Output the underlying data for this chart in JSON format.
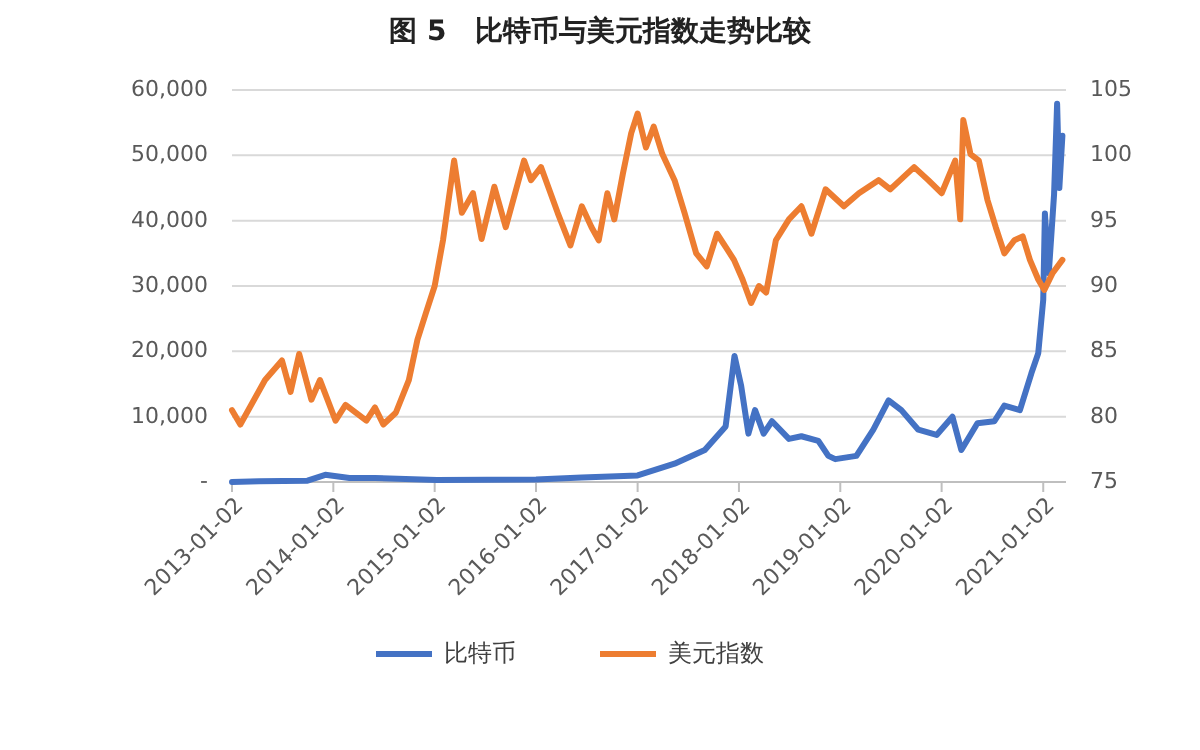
{
  "chart_data": {
    "type": "line",
    "title": "图 5　比特币与美元指数走势比较",
    "xlim": [
      "2013-01-02",
      "2021-03-25"
    ],
    "xticks": [
      "2013-01-02",
      "2014-01-02",
      "2015-01-02",
      "2016-01-02",
      "2017-01-02",
      "2018-01-02",
      "2019-01-02",
      "2020-01-02",
      "2021-01-02"
    ],
    "ylim": [
      0,
      60000
    ],
    "yticks": [
      {
        "value": 0,
        "label": "-"
      },
      {
        "value": 10000,
        "label": "10,000"
      },
      {
        "value": 20000,
        "label": "20,000"
      },
      {
        "value": 30000,
        "label": "30,000"
      },
      {
        "value": 40000,
        "label": "40,000"
      },
      {
        "value": 50000,
        "label": "50,000"
      },
      {
        "value": 60000,
        "label": "60,000"
      }
    ],
    "y2lim": [
      75,
      105
    ],
    "y2ticks": [
      75,
      80,
      85,
      90,
      95,
      100,
      105
    ],
    "grid": "y",
    "legend": "bottom",
    "line_style": "solid",
    "series": [
      {
        "name": "比特币",
        "color": "#4472c4",
        "x": [
          "2013-01-02",
          "2013-04-10",
          "2013-10-01",
          "2013-12-04",
          "2014-03-01",
          "2014-06-01",
          "2015-01-10",
          "2016-01-02",
          "2016-06-15",
          "2017-01-02",
          "2017-05-15",
          "2017-09-01",
          "2017-11-15",
          "2017-12-17",
          "2018-01-10",
          "2018-02-05",
          "2018-03-01",
          "2018-04-01",
          "2018-05-01",
          "2018-07-01",
          "2018-08-15",
          "2018-10-15",
          "2018-11-20",
          "2018-12-15",
          "2019-03-01",
          "2019-05-01",
          "2019-06-25",
          "2019-08-10",
          "2019-10-10",
          "2019-12-15",
          "2020-02-10",
          "2020-03-13",
          "2020-05-10",
          "2020-07-10",
          "2020-08-15",
          "2020-10-10",
          "2020-11-20",
          "2020-12-15",
          "2021-01-02",
          "2021-01-08",
          "2021-01-22",
          "2021-02-10",
          "2021-02-21",
          "2021-03-01",
          "2021-03-12"
        ],
        "values": [
          0,
          100,
          200,
          1100,
          600,
          600,
          300,
          400,
          700,
          1000,
          2800,
          4900,
          8500,
          19300,
          14700,
          7400,
          11000,
          7400,
          9300,
          6600,
          7000,
          6300,
          4000,
          3500,
          4000,
          8000,
          12500,
          11000,
          8000,
          7200,
          10000,
          4900,
          9000,
          9300,
          11700,
          11000,
          16600,
          19700,
          27900,
          41100,
          32000,
          44000,
          57900,
          45000,
          53000
        ]
      },
      {
        "name": "美元指数",
        "color": "#ed7d31",
        "axis": "y2",
        "x": [
          "2013-01-02",
          "2013-02-01",
          "2013-05-01",
          "2013-07-01",
          "2013-08-01",
          "2013-09-01",
          "2013-10-15",
          "2013-11-15",
          "2014-01-10",
          "2014-02-15",
          "2014-05-01",
          "2014-06-01",
          "2014-07-01",
          "2014-08-15",
          "2014-10-01",
          "2014-11-01",
          "2014-12-01",
          "2015-01-02",
          "2015-02-01",
          "2015-03-13",
          "2015-04-10",
          "2015-05-20",
          "2015-06-20",
          "2015-08-05",
          "2015-09-15",
          "2015-11-20",
          "2015-12-15",
          "2016-01-20",
          "2016-03-20",
          "2016-05-05",
          "2016-06-15",
          "2016-07-20",
          "2016-08-15",
          "2016-09-15",
          "2016-10-10",
          "2016-11-10",
          "2016-12-10",
          "2017-01-02",
          "2017-02-01",
          "2017-03-01",
          "2017-04-01",
          "2017-05-15",
          "2017-06-20",
          "2017-08-01",
          "2017-09-08",
          "2017-10-15",
          "2017-11-15",
          "2017-12-15",
          "2018-01-15",
          "2018-02-15",
          "2018-03-15",
          "2018-04-10",
          "2018-05-15",
          "2018-07-01",
          "2018-08-15",
          "2018-09-20",
          "2018-11-10",
          "2019-01-15",
          "2019-03-10",
          "2019-05-20",
          "2019-07-01",
          "2019-09-25",
          "2019-11-15",
          "2020-01-02",
          "2020-02-20",
          "2020-03-09",
          "2020-03-20",
          "2020-04-15",
          "2020-05-15",
          "2020-06-15",
          "2020-07-15",
          "2020-08-15",
          "2020-09-20",
          "2020-10-20",
          "2020-11-15",
          "2020-12-15",
          "2021-01-06",
          "2021-02-05",
          "2021-03-12"
        ],
        "values": [
          80.5,
          79.4,
          82.8,
          84.3,
          81.9,
          84.8,
          81.3,
          82.8,
          79.7,
          80.9,
          79.7,
          80.7,
          79.4,
          80.3,
          82.8,
          85.9,
          87.9,
          90.0,
          93.5,
          99.6,
          95.6,
          97.1,
          93.6,
          97.6,
          94.5,
          99.6,
          98.1,
          99.1,
          95.6,
          93.1,
          96.1,
          94.5,
          93.5,
          97.1,
          95.1,
          98.6,
          101.7,
          103.2,
          100.6,
          102.2,
          100.1,
          98.1,
          95.6,
          92.5,
          91.5,
          94.0,
          93.0,
          92.0,
          90.5,
          88.7,
          90.0,
          89.5,
          93.5,
          95.1,
          96.1,
          94.0,
          97.4,
          96.1,
          97.1,
          98.1,
          97.4,
          99.1,
          98.1,
          97.1,
          99.6,
          95.1,
          102.7,
          100.1,
          99.6,
          96.6,
          94.5,
          92.5,
          93.5,
          93.8,
          92.0,
          90.5,
          89.7,
          91.0,
          92.0
        ]
      }
    ]
  }
}
